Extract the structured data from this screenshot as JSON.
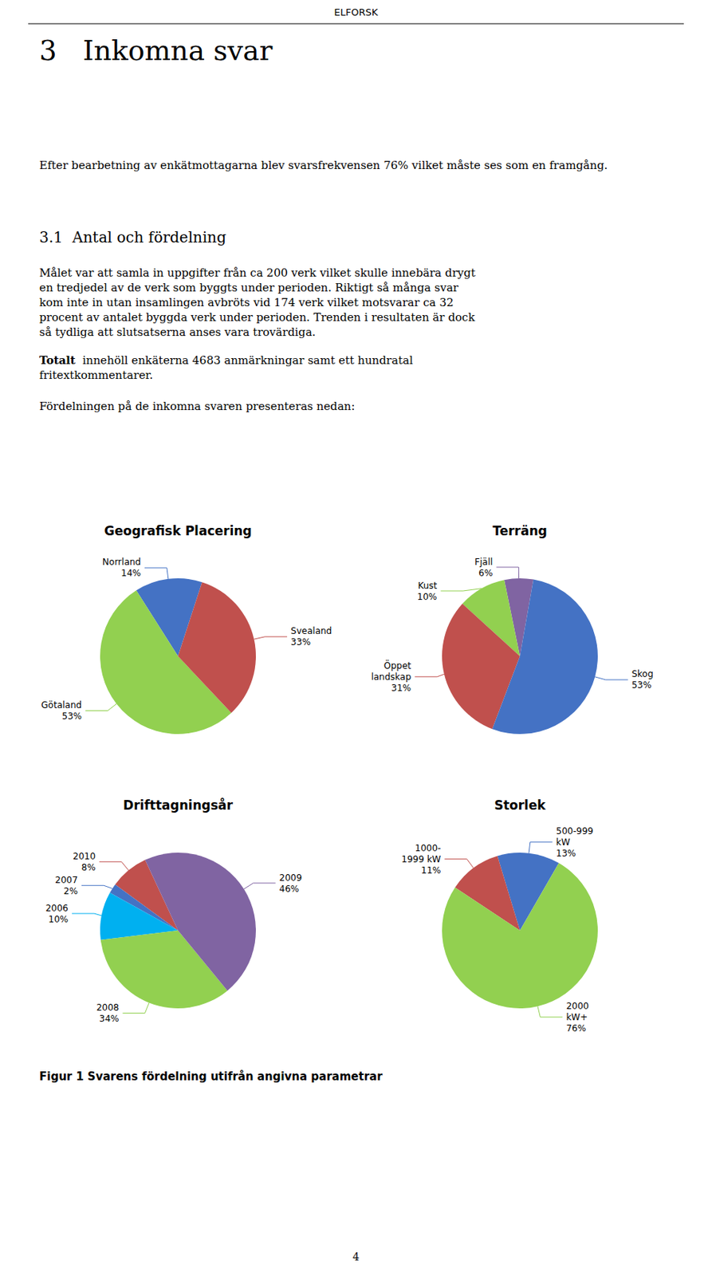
{
  "title": "3   Inkomna svar",
  "subtitle": "3.1  Antal och fördelning",
  "annotations": [
    "ELFORSK",
    "Efter bearbetning av enkätmottagarna blev svarsfrekvensen 76% vilket måste ses som en framgång.",
    "Målet var att samla in uppgifter från ca 200 verk vilket skulle innebära drygt",
    "en tredjedel av de verk som byggts under perioden. Riktigt så många svar",
    "kom inte in utan insamlingen avbröts vid 174 verk vilket motsvarar ca 32",
    "procent av antalet byggda verk under perioden. Trenden i resultaten är dock",
    "så tydliga att slutsatserna anses vara trovärdiga.",
    "Totalt",
    "  innehöll enkäterna 4683 anmärkningar samt ett hundratal",
    "fritextkommentarer.",
    "Fördelningen på de inkomna svaren presenteras nedan:",
    "Figur 1 Svarens fördelning utifrån angivna parametrar",
    "4"
  ],
  "chart_data": [
    {
      "type": "pie",
      "title": "Geografisk Placering",
      "categories": [
        "Norrland",
        "Götaland",
        "Svealand"
      ],
      "values": [
        14,
        53,
        33
      ],
      "value_labels": [
        "14%",
        "53%",
        "33%"
      ],
      "colors": [
        "#4472C4",
        "#92D050",
        "#C0504D"
      ],
      "data_labels": true
    },
    {
      "type": "pie",
      "title": "Terräng",
      "categories": [
        "Fjäll",
        "Kust",
        "Öppet\nlandskap",
        "Skog"
      ],
      "values": [
        6,
        10,
        31,
        53
      ],
      "value_labels": [
        "6%",
        "10%",
        "31%",
        "53%"
      ],
      "colors": [
        "#8064A2",
        "#92D050",
        "#C0504D",
        "#4472C4"
      ],
      "data_labels": true
    },
    {
      "type": "pie",
      "title": "Drifttagningsår",
      "categories": [
        "2010",
        "2007",
        "2006",
        "2008",
        "2009"
      ],
      "values": [
        8,
        2,
        10,
        34,
        46
      ],
      "value_labels": [
        "8%",
        "2%",
        "10%",
        "34%",
        "46%"
      ],
      "colors": [
        "#C0504D",
        "#4472C4",
        "#00B0F0",
        "#92D050",
        "#8064A2"
      ],
      "data_labels": true
    },
    {
      "type": "pie",
      "title": "Storlek",
      "categories": [
        "500-999\nkW",
        "1000-\n1999 kW",
        "2000\nkW+"
      ],
      "values": [
        13,
        11,
        76
      ],
      "value_labels": [
        "13%",
        "11%",
        "76%"
      ],
      "colors": [
        "#4472C4",
        "#C0504D",
        "#92D050"
      ],
      "data_labels": true
    }
  ]
}
